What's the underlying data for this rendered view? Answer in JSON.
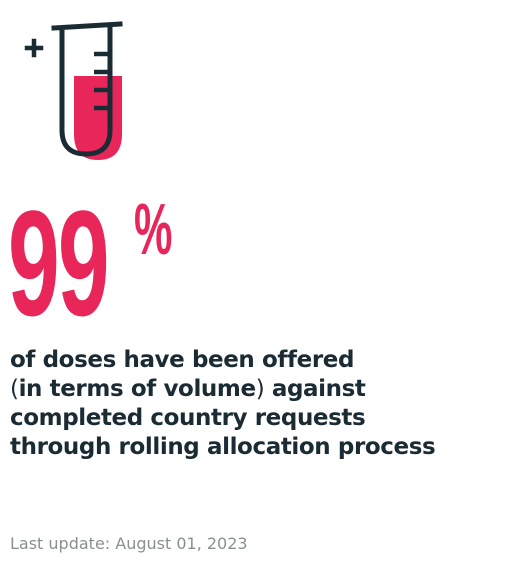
{
  "icon": "test-tube-icon",
  "accent_color": "#e8265a",
  "text_color": "#1b2b34",
  "stat": {
    "value": "99",
    "unit": "%"
  },
  "description": {
    "line1": "of doses have been offered",
    "line2_open": "(",
    "line2_bold": "in terms of volume",
    "line2_close": ")",
    "line2_rest": " against",
    "line3": "completed country requests",
    "line4": "through rolling allocation process"
  },
  "last_update": "Last update: August 01, 2023"
}
